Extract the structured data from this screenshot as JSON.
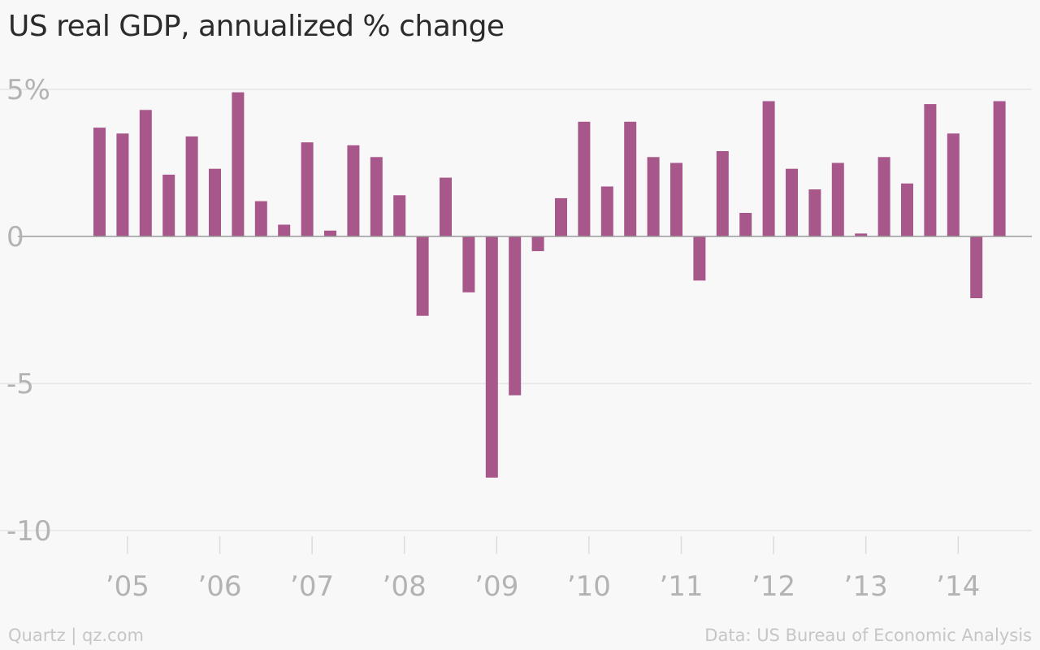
{
  "chart_data": {
    "type": "bar",
    "title": "US real GDP, annualized % change",
    "y_tick_labels": [
      "5%",
      "0",
      "-5",
      "-10"
    ],
    "y_ticks": [
      5,
      0,
      -5,
      -10
    ],
    "ylim": [
      -10.3,
      5.5
    ],
    "x_tick_labels": [
      "’05",
      "’06",
      "’07",
      "’08",
      "’09",
      "’10",
      "’11",
      "’12",
      "’13",
      "’14"
    ],
    "categories": [
      "2004 Q4",
      "2005 Q1",
      "2005 Q2",
      "2005 Q3",
      "2005 Q4",
      "2006 Q1",
      "2006 Q2",
      "2006 Q3",
      "2006 Q4",
      "2007 Q1",
      "2007 Q2",
      "2007 Q3",
      "2007 Q4",
      "2008 Q1",
      "2008 Q2",
      "2008 Q3",
      "2008 Q4",
      "2009 Q1",
      "2009 Q2",
      "2009 Q3",
      "2009 Q4",
      "2010 Q1",
      "2010 Q2",
      "2010 Q3",
      "2010 Q4",
      "2011 Q1",
      "2011 Q2",
      "2011 Q3",
      "2011 Q4",
      "2012 Q1",
      "2012 Q2",
      "2012 Q3",
      "2012 Q4",
      "2013 Q1",
      "2013 Q2",
      "2013 Q3",
      "2013 Q4",
      "2014 Q1",
      "2014 Q2",
      "2014 Q3"
    ],
    "values": [
      3.7,
      3.5,
      4.3,
      2.1,
      3.4,
      2.3,
      4.9,
      1.2,
      0.4,
      3.2,
      0.2,
      3.1,
      2.7,
      1.4,
      -2.7,
      2.0,
      -1.9,
      -8.2,
      -5.4,
      -0.5,
      1.3,
      3.9,
      1.7,
      3.9,
      2.7,
      2.5,
      -1.5,
      2.9,
      0.8,
      4.6,
      2.3,
      1.6,
      2.5,
      0.1,
      2.7,
      1.8,
      4.5,
      3.5,
      -2.1,
      4.6
    ],
    "bar_color": "#a8578a",
    "grid": true,
    "legend": "none"
  },
  "footer": {
    "source_left": "Quartz | qz.com",
    "source_right": "Data: US Bureau of Economic Analysis"
  }
}
